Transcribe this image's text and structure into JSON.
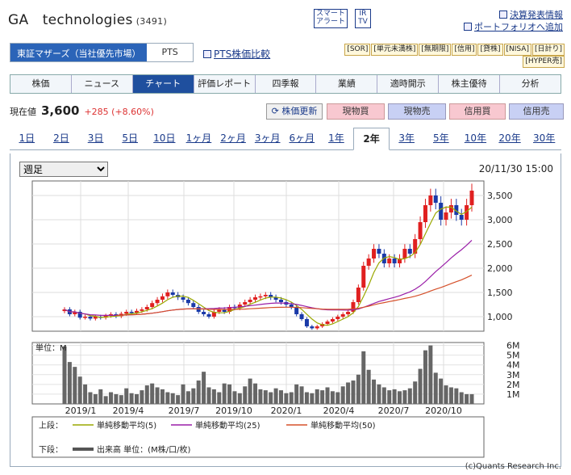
{
  "header": {
    "company": "GA　technologies",
    "code": "(3491)",
    "smart_alert": [
      "スマート",
      "アラート"
    ],
    "ir_tv": [
      "IR",
      "TV"
    ],
    "link_results": "決算発表情報",
    "link_portfolio": "ポートフォリオへ追加"
  },
  "market": {
    "selected": "東証マザーズ（当社優先市場）",
    "pts": "PTS",
    "pts_compare": "PTS株価比較"
  },
  "tags": [
    "[SOR]",
    "[単元未満株]",
    "[無期限]",
    "[信用]",
    "[貸株]",
    "[NISA]",
    "[日計り]",
    "[HYPER売]"
  ],
  "nav": [
    "株価",
    "ニュース",
    "チャート",
    "評価レポート",
    "四季報",
    "業績",
    "適時開示",
    "株主優待",
    "分析"
  ],
  "price": {
    "label": "現在値",
    "value": "3,600",
    "change": "+285 (+8.60%)"
  },
  "buttons": {
    "update": "株価更新",
    "buy_spot": "現物買",
    "sell_spot": "現物売",
    "buy_margin": "信用買",
    "sell_margin": "信用売"
  },
  "periods": [
    "1日",
    "2日",
    "3日",
    "5日",
    "10日",
    "1ヶ月",
    "2ヶ月",
    "3ヶ月",
    "6ヶ月",
    "1年",
    "2年",
    "3年",
    "5年",
    "10年",
    "20年",
    "30年"
  ],
  "chart_select": "週足",
  "timestamp": "20/11/30 15:00",
  "chart_data": {
    "type": "line",
    "x_labels": [
      "2019/1",
      "2019/4",
      "2019/7",
      "2019/10",
      "2020/1",
      "2020/4",
      "2020/7",
      "2020/10"
    ],
    "y_ticks": [
      "1,000",
      "1,500",
      "2,000",
      "2,500",
      "3,000",
      "3,500"
    ],
    "ylim": [
      700,
      3800
    ],
    "weekly_close": [
      1150,
      1050,
      1100,
      980,
      1000,
      960,
      1000,
      980,
      1020,
      1050,
      1010,
      1060,
      1100,
      1080,
      1120,
      1150,
      1200,
      1280,
      1350,
      1420,
      1500,
      1450,
      1400,
      1350,
      1280,
      1200,
      1100,
      1050,
      1000,
      1100,
      1150,
      1100,
      1200,
      1180,
      1250,
      1300,
      1350,
      1400,
      1420,
      1450,
      1400,
      1350,
      1300,
      1250,
      1200,
      1050,
      950,
      800,
      760,
      800,
      850,
      900,
      950,
      1000,
      1050,
      1100,
      1300,
      1600,
      2050,
      2200,
      2400,
      2300,
      2100,
      2200,
      2100,
      2200,
      2400,
      2300,
      2600,
      2950,
      3300,
      3500,
      3350,
      3000,
      3150,
      3300,
      3100,
      3000,
      3300,
      3600
    ],
    "series": [
      {
        "name": "単純移動平均(5)",
        "color": "#9aa800"
      },
      {
        "name": "単純移動平均(25)",
        "color": "#9a1fa8"
      },
      {
        "name": "単純移動平均(50)",
        "color": "#d5502a"
      }
    ],
    "volume_unit_label": "単位：M",
    "volume_ticks": [
      "6M",
      "5M",
      "4M",
      "3M",
      "2M",
      "1M"
    ],
    "volume": [
      5.9,
      4.3,
      3.8,
      2.8,
      2.0,
      1.2,
      1.0,
      1.5,
      0.8,
      1.2,
      1.0,
      0.9,
      1.6,
      1.1,
      1.0,
      1.4,
      1.9,
      2.1,
      1.7,
      1.5,
      1.2,
      1.1,
      0.9,
      2.0,
      1.3,
      1.6,
      2.4,
      3.3,
      1.7,
      1.5,
      1.2,
      2.1,
      2.0,
      1.3,
      1.1,
      1.8,
      2.6,
      2.1,
      1.5,
      1.4,
      1.2,
      1.6,
      1.4,
      1.1,
      1.2,
      2.0,
      1.8,
      1.2,
      1.1,
      1.5,
      1.4,
      1.7,
      1.3,
      1.2,
      1.8,
      2.2,
      2.4,
      3.0,
      5.4,
      3.5,
      2.5,
      2.0,
      1.7,
      1.4,
      1.5,
      1.3,
      1.4,
      1.6,
      2.3,
      3.6,
      5.5,
      6.0,
      3.2,
      2.6,
      1.9,
      1.7,
      1.6,
      1.2,
      1.0,
      1.0
    ],
    "legend": {
      "upper_label": "上段：",
      "lower_label": "下段：",
      "lower_entry": "出来高 単位：(M株/口/枚)"
    },
    "copyright": "(c)Quants Research Inc."
  }
}
